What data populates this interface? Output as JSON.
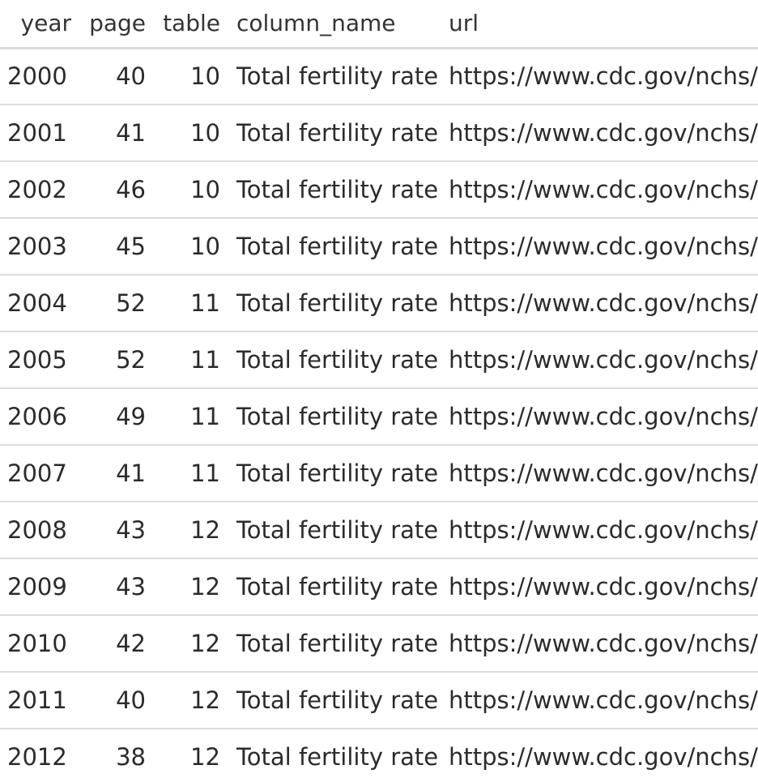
{
  "table": {
    "headers": {
      "year": "year",
      "page": "page",
      "table": "table",
      "column_name": "column_name",
      "url": "url"
    },
    "rows": [
      {
        "year": "2000",
        "page": "40",
        "table": "10",
        "column_name": "Total fertility rate",
        "url": "https://www.cdc.gov/nchs/"
      },
      {
        "year": "2001",
        "page": "41",
        "table": "10",
        "column_name": "Total fertility rate",
        "url": "https://www.cdc.gov/nchs/"
      },
      {
        "year": "2002",
        "page": "46",
        "table": "10",
        "column_name": "Total fertility rate",
        "url": "https://www.cdc.gov/nchs/"
      },
      {
        "year": "2003",
        "page": "45",
        "table": "10",
        "column_name": "Total fertility rate",
        "url": "https://www.cdc.gov/nchs/"
      },
      {
        "year": "2004",
        "page": "52",
        "table": "11",
        "column_name": "Total fertility rate",
        "url": "https://www.cdc.gov/nchs/"
      },
      {
        "year": "2005",
        "page": "52",
        "table": "11",
        "column_name": "Total fertility rate",
        "url": "https://www.cdc.gov/nchs/"
      },
      {
        "year": "2006",
        "page": "49",
        "table": "11",
        "column_name": "Total fertility rate",
        "url": "https://www.cdc.gov/nchs/"
      },
      {
        "year": "2007",
        "page": "41",
        "table": "11",
        "column_name": "Total fertility rate",
        "url": "https://www.cdc.gov/nchs/"
      },
      {
        "year": "2008",
        "page": "43",
        "table": "12",
        "column_name": "Total fertility rate",
        "url": "https://www.cdc.gov/nchs/"
      },
      {
        "year": "2009",
        "page": "43",
        "table": "12",
        "column_name": "Total fertility rate",
        "url": "https://www.cdc.gov/nchs/"
      },
      {
        "year": "2010",
        "page": "42",
        "table": "12",
        "column_name": "Total fertility rate",
        "url": "https://www.cdc.gov/nchs/"
      },
      {
        "year": "2011",
        "page": "40",
        "table": "12",
        "column_name": "Total fertility rate",
        "url": "https://www.cdc.gov/nchs/"
      },
      {
        "year": "2012",
        "page": "38",
        "table": "12",
        "column_name": "Total fertility rate",
        "url": "https://www.cdc.gov/nchs/"
      }
    ]
  }
}
